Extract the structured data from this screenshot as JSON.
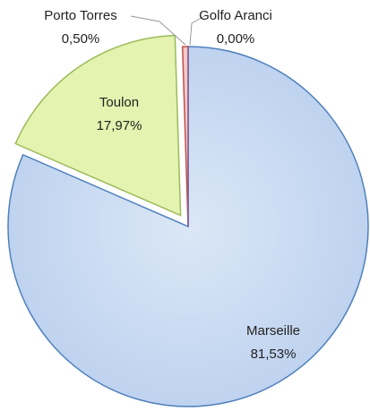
{
  "chart_data": {
    "type": "pie",
    "categories": [
      "Marseille",
      "Toulon",
      "Porto Torres",
      "Golfo Aranci"
    ],
    "values": [
      81.53,
      17.97,
      0.5,
      0.0
    ],
    "value_labels": [
      "81,53%",
      "17,97%",
      "0,50%",
      "0,00%"
    ],
    "colors": [
      "#c6d9f1",
      "#e4f3b0",
      "#f2c9c8",
      "#d9cfe8"
    ],
    "stroke_colors": [
      "#4f81bd",
      "#9bbb59",
      "#c0504d",
      "#8064a2"
    ],
    "exploded": [
      false,
      true,
      false,
      false
    ]
  }
}
